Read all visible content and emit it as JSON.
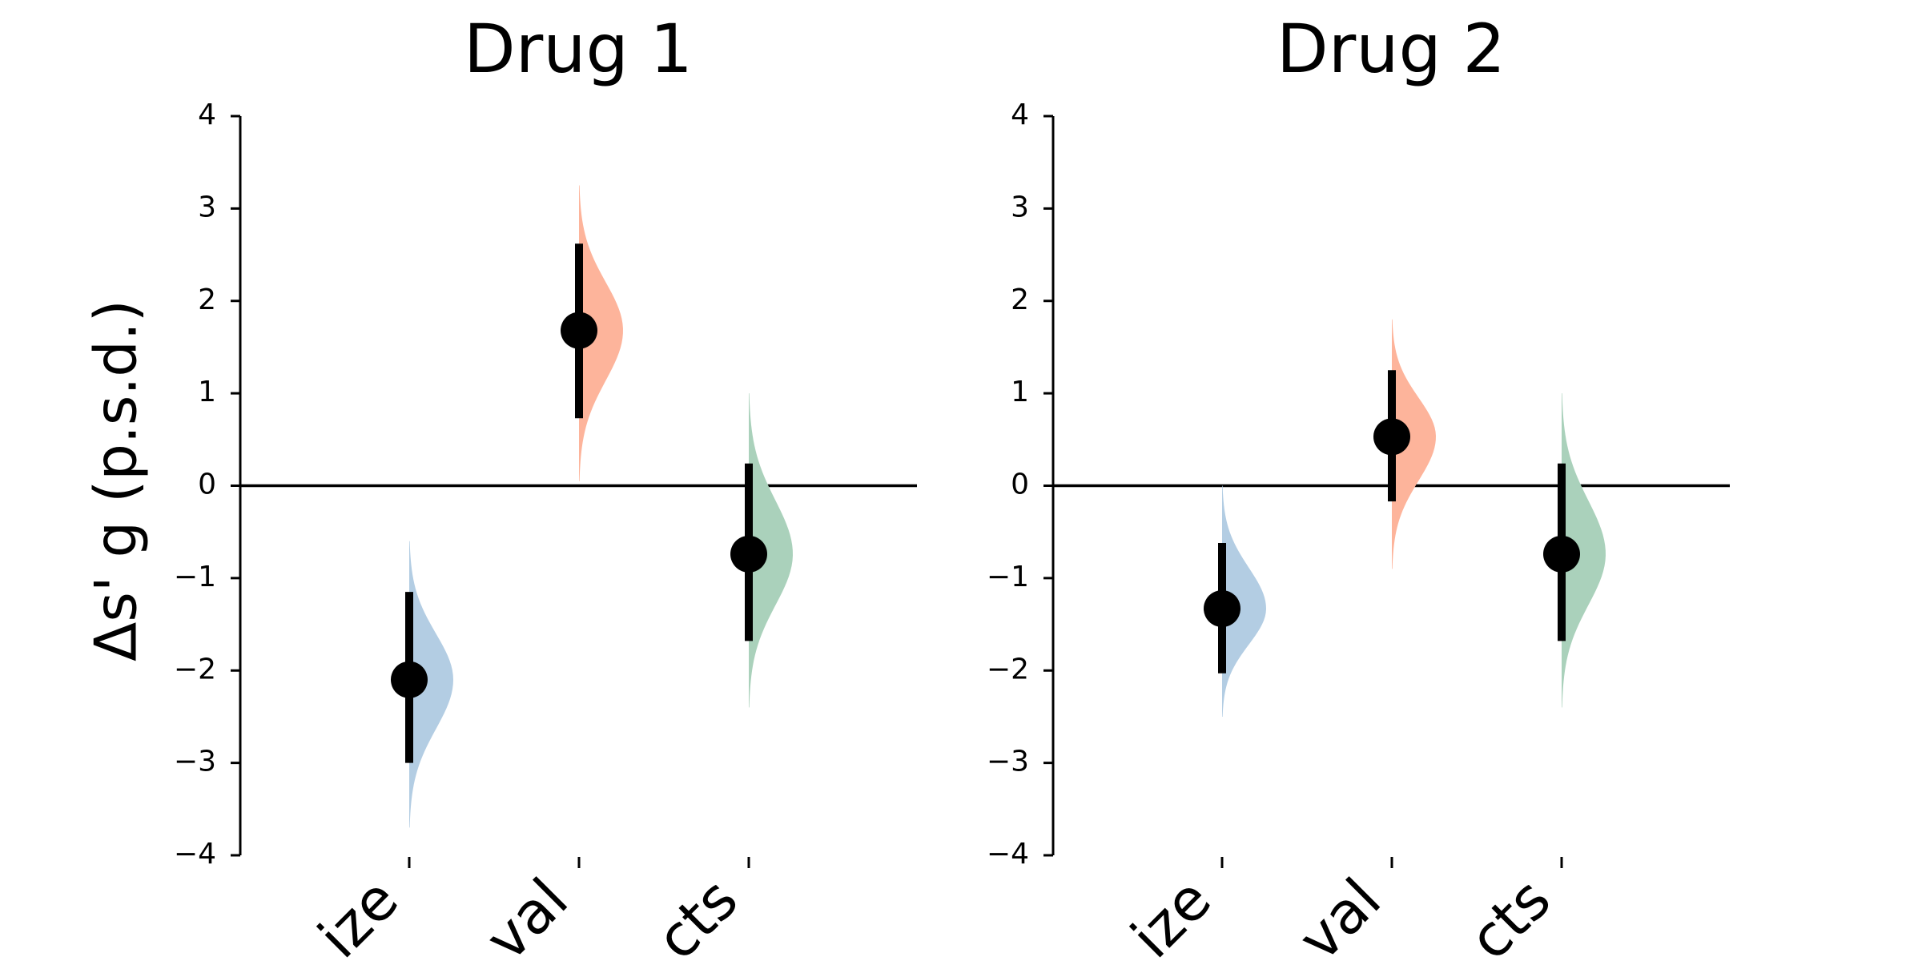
{
  "chart_data": [
    {
      "type": "scatter",
      "title": "Drug 1",
      "ylabel": "Δs' g (p.s.d.)",
      "ylim": [
        -4,
        4
      ],
      "yticks": [
        -4,
        -3,
        -2,
        -1,
        0,
        1,
        2,
        3,
        4
      ],
      "ytick_labels": [
        "−4",
        "−3",
        "−2",
        "−1",
        "0",
        "1",
        "2",
        "3",
        "4"
      ],
      "reference_line": 0,
      "categories": [
        "Size",
        "Survival",
        "Side effects"
      ],
      "category_labels_visible": [
        "ize",
        "val",
        "cts"
      ],
      "points": [
        {
          "category": "Size",
          "estimate": -2.1,
          "ci_low": -3.0,
          "ci_high": -1.15,
          "dist_min": -3.7,
          "dist_max": -0.6,
          "color": "#b3cde3"
        },
        {
          "category": "Survival",
          "estimate": 1.68,
          "ci_low": 0.73,
          "ci_high": 2.62,
          "dist_min": 0.05,
          "dist_max": 3.25,
          "color": "#fdb49b"
        },
        {
          "category": "Side effects",
          "estimate": -0.74,
          "ci_low": -1.68,
          "ci_high": 0.24,
          "dist_min": -2.4,
          "dist_max": 1.0,
          "color": "#aad1bb"
        }
      ]
    },
    {
      "type": "scatter",
      "title": "Drug 2",
      "ylim": [
        -4,
        4
      ],
      "yticks": [
        -4,
        -3,
        -2,
        -1,
        0,
        1,
        2,
        3,
        4
      ],
      "ytick_labels": [
        "−4",
        "−3",
        "−2",
        "−1",
        "0",
        "1",
        "2",
        "3",
        "4"
      ],
      "reference_line": 0,
      "categories": [
        "Size",
        "Survival",
        "Side effects"
      ],
      "category_labels_visible": [
        "ize",
        "val",
        "cts"
      ],
      "points": [
        {
          "category": "Size",
          "estimate": -1.33,
          "ci_low": -2.03,
          "ci_high": -0.62,
          "dist_min": -2.5,
          "dist_max": 0.0,
          "color": "#b3cde3"
        },
        {
          "category": "Survival",
          "estimate": 0.53,
          "ci_low": -0.17,
          "ci_high": 1.25,
          "dist_min": -0.9,
          "dist_max": 1.8,
          "color": "#fdb49b"
        },
        {
          "category": "Side effects",
          "estimate": -0.74,
          "ci_low": -1.68,
          "ci_high": 0.24,
          "dist_min": -2.4,
          "dist_max": 1.0,
          "color": "#aad1bb"
        }
      ]
    }
  ]
}
